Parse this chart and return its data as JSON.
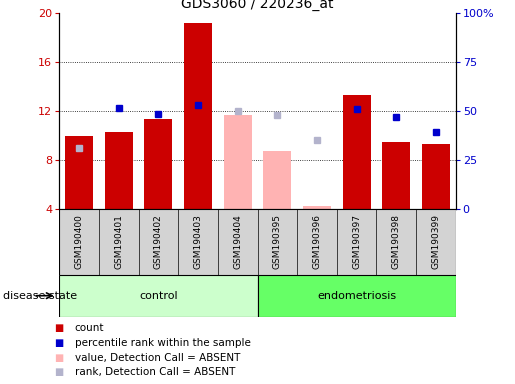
{
  "title": "GDS3060 / 220236_at",
  "samples": [
    "GSM190400",
    "GSM190401",
    "GSM190402",
    "GSM190403",
    "GSM190404",
    "GSM190395",
    "GSM190396",
    "GSM190397",
    "GSM190398",
    "GSM190399"
  ],
  "bar_values": [
    10.0,
    10.3,
    11.4,
    19.2,
    null,
    null,
    null,
    13.3,
    9.5,
    9.3
  ],
  "bar_absent_values": [
    null,
    null,
    null,
    null,
    11.7,
    8.8,
    4.3,
    null,
    null,
    null
  ],
  "dot_values": [
    9.0,
    12.3,
    11.8,
    12.5,
    12.0,
    11.7,
    9.7,
    12.2,
    11.5,
    10.3
  ],
  "dot_absent": [
    true,
    false,
    false,
    false,
    true,
    true,
    true,
    false,
    false,
    false
  ],
  "ylim_left": [
    4,
    20
  ],
  "ylim_right": [
    0,
    100
  ],
  "left_ticks": [
    4,
    8,
    12,
    16,
    20
  ],
  "right_ticks": [
    0,
    25,
    50,
    75,
    100
  ],
  "bar_color": "#cc0000",
  "bar_absent_color": "#ffb3b3",
  "dot_color": "#0000cc",
  "dot_absent_color": "#b3b3cc",
  "control_bg": "#ccffcc",
  "endometriosis_bg": "#66ff66",
  "control_label": "control",
  "endometriosis_label": "endometriosis",
  "disease_state_label": "disease state",
  "n_control": 5,
  "n_endo": 5,
  "legend_items": [
    {
      "label": "count",
      "color": "#cc0000"
    },
    {
      "label": "percentile rank within the sample",
      "color": "#0000cc"
    },
    {
      "label": "value, Detection Call = ABSENT",
      "color": "#ffb3b3"
    },
    {
      "label": "rank, Detection Call = ABSENT",
      "color": "#b3b3cc"
    }
  ]
}
